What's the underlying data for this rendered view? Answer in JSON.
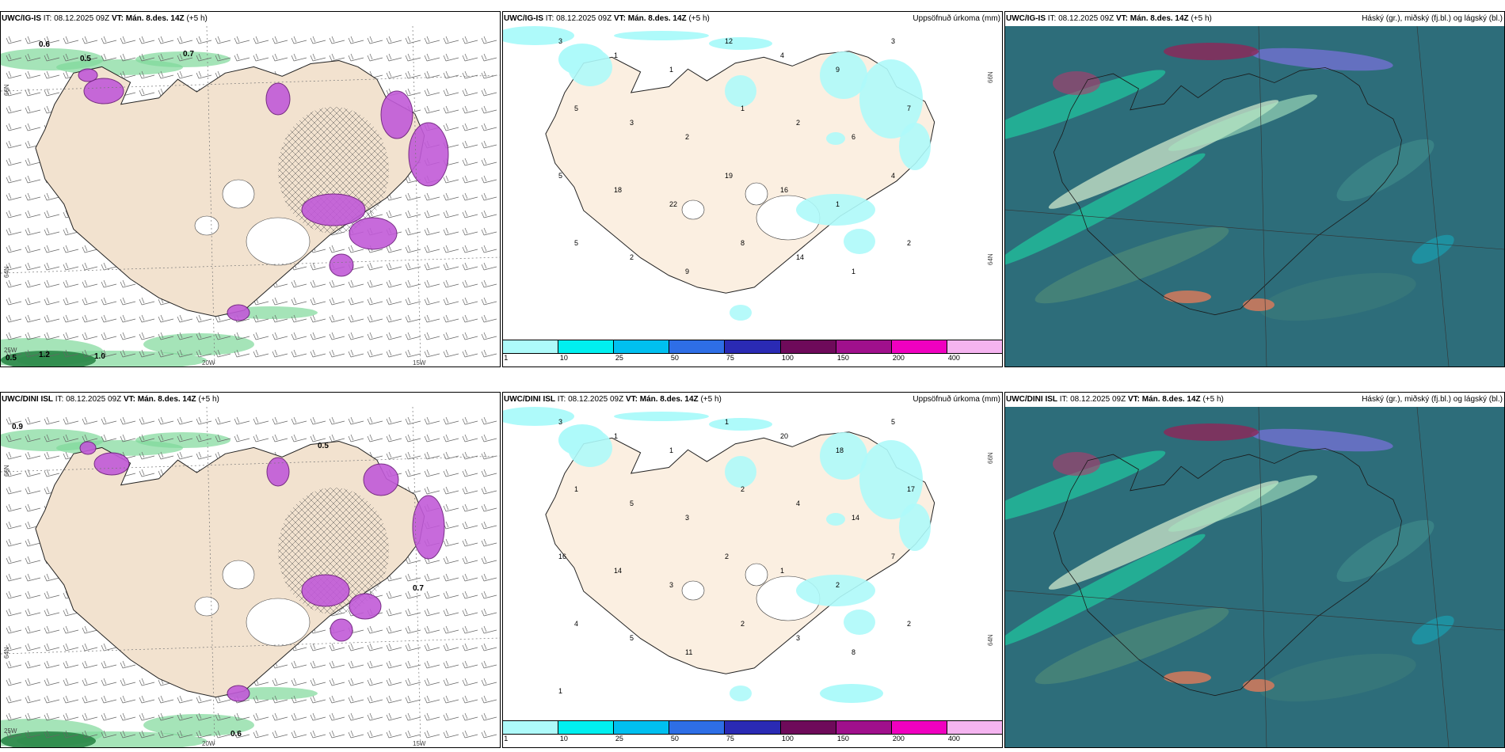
{
  "panels": [
    {
      "model": "UWC/IG-IS",
      "it_label": "IT:",
      "it_value": "08.12.2025 09Z",
      "vt_label": "VT:",
      "vt_value": "Mán. 8.des. 14Z",
      "lead": "(+5 h)",
      "right_title": "",
      "map_labels": [
        "0.5",
        "1.2",
        "1.0",
        "0.5",
        "0.6",
        "0.7"
      ],
      "axis_labels": [
        "66N",
        "64N",
        "25W",
        "20W",
        "15W"
      ]
    },
    {
      "model": "UWC/IG-IS",
      "it_label": "IT:",
      "it_value": "08.12.2025 09Z",
      "vt_label": "VT:",
      "vt_value": "Mán. 8.des. 14Z",
      "lead": "(+5 h)",
      "right_title": "Uppsöfnuð úrkoma (mm)",
      "map_labels": [
        "3",
        "1",
        "1",
        "12",
        "4",
        "9",
        "3",
        "5",
        "3",
        "2",
        "1",
        "2",
        "6",
        "7",
        "5",
        "18",
        "22",
        "19",
        "16",
        "1",
        "4",
        "5",
        "2",
        "9",
        "8",
        "14",
        "1",
        "2"
      ],
      "axis_labels": [
        "66N",
        "64N"
      ]
    },
    {
      "model": "UWC/IG-IS",
      "it_label": "IT:",
      "it_value": "08.12.2025 09Z",
      "vt_label": "VT:",
      "vt_value": "Mán. 8.des. 14Z",
      "lead": "(+5 h)",
      "right_title": "Háský (gr.), miðský (fj.bl.) og lágský (bl.)"
    },
    {
      "model": "UWC/DINI ISL",
      "it_label": "IT:",
      "it_value": "08.12.2025 09Z",
      "vt_label": "VT:",
      "vt_value": "Mán. 8.des. 14Z",
      "lead": "(+5 h)",
      "right_title": "",
      "map_labels": [
        "0.9",
        "0.6",
        "0.5",
        "0.7"
      ],
      "axis_labels": [
        "66N",
        "64N",
        "25W",
        "20W",
        "15W"
      ]
    },
    {
      "model": "UWC/DINI ISL",
      "it_label": "IT:",
      "it_value": "08.12.2025 09Z",
      "vt_label": "VT:",
      "vt_value": "Mán. 8.des. 14Z",
      "lead": "(+5 h)",
      "right_title": "Uppsöfnuð úrkoma (mm)",
      "map_labels": [
        "3",
        "1",
        "1",
        "1",
        "20",
        "18",
        "5",
        "1",
        "5",
        "3",
        "2",
        "4",
        "14",
        "17",
        "16",
        "14",
        "3",
        "2",
        "1",
        "2",
        "7",
        "4",
        "5",
        "11",
        "2",
        "3",
        "8",
        "2",
        "1"
      ],
      "axis_labels": [
        "66N",
        "64N"
      ]
    },
    {
      "model": "UWC/DINI ISL",
      "it_label": "IT:",
      "it_value": "08.12.2025 09Z",
      "vt_label": "VT:",
      "vt_value": "Mán. 8.des. 14Z",
      "lead": "(+5 h)",
      "right_title": "Háský (gr.), miðský (fj.bl.) og lágský (bl.)"
    }
  ],
  "legend": {
    "colors": [
      "#aefafa",
      "#00f0f0",
      "#00c0f0",
      "#2e6ee6",
      "#2a2ab4",
      "#6e0a5a",
      "#a0108c",
      "#f000c0",
      "#f5b4f0"
    ],
    "ticks": [
      "1",
      "10",
      "25",
      "50",
      "75",
      "100",
      "150",
      "200",
      "400"
    ]
  }
}
